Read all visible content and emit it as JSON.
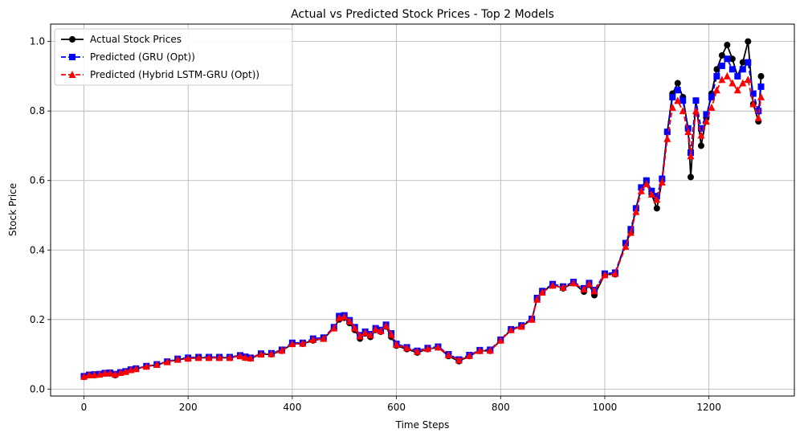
{
  "chart_data": {
    "type": "line",
    "title": "Actual vs Predicted Stock Prices - Top 2 Models",
    "xlabel": "Time Steps",
    "ylabel": "Stock Price",
    "xlim": [
      -64,
      1364
    ],
    "ylim": [
      -0.02,
      1.05
    ],
    "x_ticks": [
      0,
      200,
      400,
      600,
      800,
      1000,
      1200
    ],
    "y_ticks": [
      0.0,
      0.2,
      0.4,
      0.6,
      0.8,
      1.0
    ],
    "x_tick_labels": [
      "0",
      "200",
      "400",
      "600",
      "800",
      "1000",
      "1200"
    ],
    "y_tick_labels": [
      "0.0",
      "0.2",
      "0.4",
      "0.6",
      "0.8",
      "1.0"
    ],
    "grid": true,
    "legend_position": "upper-left",
    "series": [
      {
        "name": "Actual Stock Prices",
        "color": "#000000",
        "linestyle": "solid",
        "marker": "circle",
        "x": [
          0,
          10,
          20,
          30,
          40,
          50,
          60,
          70,
          80,
          90,
          100,
          120,
          140,
          160,
          180,
          200,
          220,
          240,
          260,
          280,
          300,
          310,
          320,
          340,
          360,
          380,
          400,
          420,
          440,
          460,
          480,
          490,
          500,
          510,
          520,
          530,
          540,
          550,
          560,
          570,
          580,
          590,
          600,
          620,
          640,
          660,
          680,
          700,
          720,
          740,
          760,
          780,
          800,
          820,
          840,
          860,
          870,
          880,
          900,
          920,
          940,
          960,
          970,
          980,
          1000,
          1020,
          1040,
          1050,
          1060,
          1070,
          1080,
          1090,
          1100,
          1110,
          1120,
          1130,
          1140,
          1150,
          1160,
          1165,
          1175,
          1185,
          1195,
          1205,
          1215,
          1225,
          1235,
          1245,
          1255,
          1265,
          1275,
          1285,
          1295,
          1300
        ],
        "values": [
          0.035,
          0.04,
          0.04,
          0.042,
          0.045,
          0.045,
          0.04,
          0.048,
          0.05,
          0.055,
          0.058,
          0.065,
          0.07,
          0.078,
          0.085,
          0.088,
          0.09,
          0.09,
          0.09,
          0.09,
          0.095,
          0.09,
          0.088,
          0.1,
          0.1,
          0.11,
          0.13,
          0.13,
          0.14,
          0.145,
          0.175,
          0.2,
          0.205,
          0.19,
          0.17,
          0.145,
          0.16,
          0.15,
          0.17,
          0.165,
          0.18,
          0.15,
          0.125,
          0.115,
          0.105,
          0.115,
          0.12,
          0.095,
          0.08,
          0.095,
          0.11,
          0.11,
          0.14,
          0.17,
          0.18,
          0.2,
          0.26,
          0.28,
          0.3,
          0.29,
          0.305,
          0.28,
          0.3,
          0.27,
          0.33,
          0.33,
          0.42,
          0.45,
          0.52,
          0.58,
          0.6,
          0.56,
          0.52,
          0.6,
          0.74,
          0.85,
          0.88,
          0.84,
          0.75,
          0.61,
          0.83,
          0.7,
          0.78,
          0.85,
          0.92,
          0.96,
          0.99,
          0.95,
          0.9,
          0.94,
          1.0,
          0.82,
          0.77,
          0.9
        ]
      },
      {
        "name": "Predicted (GRU (Opt))",
        "color": "#0000ff",
        "linestyle": "dashed",
        "marker": "square",
        "x": [
          0,
          10,
          20,
          30,
          40,
          50,
          60,
          70,
          80,
          90,
          100,
          120,
          140,
          160,
          180,
          200,
          220,
          240,
          260,
          280,
          300,
          310,
          320,
          340,
          360,
          380,
          400,
          420,
          440,
          460,
          480,
          490,
          500,
          510,
          520,
          530,
          540,
          550,
          560,
          570,
          580,
          590,
          600,
          620,
          640,
          660,
          680,
          700,
          720,
          740,
          760,
          780,
          800,
          820,
          840,
          860,
          870,
          880,
          900,
          920,
          940,
          960,
          970,
          980,
          1000,
          1020,
          1040,
          1050,
          1060,
          1070,
          1080,
          1090,
          1100,
          1110,
          1120,
          1130,
          1140,
          1150,
          1160,
          1165,
          1175,
          1185,
          1195,
          1205,
          1215,
          1225,
          1235,
          1245,
          1255,
          1265,
          1275,
          1285,
          1295,
          1300
        ],
        "values": [
          0.037,
          0.041,
          0.042,
          0.043,
          0.046,
          0.047,
          0.043,
          0.048,
          0.051,
          0.056,
          0.059,
          0.066,
          0.071,
          0.079,
          0.087,
          0.09,
          0.092,
          0.092,
          0.092,
          0.092,
          0.097,
          0.093,
          0.09,
          0.102,
          0.103,
          0.113,
          0.133,
          0.133,
          0.145,
          0.148,
          0.178,
          0.21,
          0.212,
          0.198,
          0.178,
          0.155,
          0.165,
          0.158,
          0.175,
          0.17,
          0.185,
          0.16,
          0.13,
          0.12,
          0.11,
          0.118,
          0.122,
          0.1,
          0.085,
          0.098,
          0.112,
          0.113,
          0.142,
          0.172,
          0.183,
          0.202,
          0.262,
          0.282,
          0.302,
          0.295,
          0.308,
          0.29,
          0.305,
          0.285,
          0.332,
          0.335,
          0.42,
          0.46,
          0.52,
          0.58,
          0.6,
          0.57,
          0.555,
          0.605,
          0.74,
          0.84,
          0.86,
          0.83,
          0.75,
          0.68,
          0.83,
          0.75,
          0.79,
          0.84,
          0.9,
          0.93,
          0.95,
          0.92,
          0.9,
          0.92,
          0.94,
          0.85,
          0.8,
          0.87
        ]
      },
      {
        "name": "Predicted (Hybrid LSTM-GRU (Opt))",
        "color": "#ff0000",
        "linestyle": "dashed",
        "marker": "triangle",
        "x": [
          0,
          10,
          20,
          30,
          40,
          50,
          60,
          70,
          80,
          90,
          100,
          120,
          140,
          160,
          180,
          200,
          220,
          240,
          260,
          280,
          300,
          310,
          320,
          340,
          360,
          380,
          400,
          420,
          440,
          460,
          480,
          490,
          500,
          510,
          520,
          530,
          540,
          550,
          560,
          570,
          580,
          590,
          600,
          620,
          640,
          660,
          680,
          700,
          720,
          740,
          760,
          780,
          800,
          820,
          840,
          860,
          870,
          880,
          900,
          920,
          940,
          960,
          970,
          980,
          1000,
          1020,
          1040,
          1050,
          1060,
          1070,
          1080,
          1090,
          1100,
          1110,
          1120,
          1130,
          1140,
          1150,
          1160,
          1165,
          1175,
          1185,
          1195,
          1205,
          1215,
          1225,
          1235,
          1245,
          1255,
          1265,
          1275,
          1285,
          1295,
          1300
        ],
        "values": [
          0.036,
          0.04,
          0.041,
          0.042,
          0.045,
          0.046,
          0.042,
          0.047,
          0.05,
          0.055,
          0.058,
          0.065,
          0.07,
          0.078,
          0.085,
          0.088,
          0.09,
          0.09,
          0.09,
          0.09,
          0.095,
          0.091,
          0.089,
          0.1,
          0.101,
          0.111,
          0.13,
          0.131,
          0.142,
          0.145,
          0.175,
          0.205,
          0.208,
          0.195,
          0.175,
          0.152,
          0.162,
          0.155,
          0.172,
          0.167,
          0.182,
          0.157,
          0.128,
          0.118,
          0.108,
          0.116,
          0.12,
          0.098,
          0.083,
          0.096,
          0.11,
          0.111,
          0.14,
          0.17,
          0.18,
          0.2,
          0.258,
          0.278,
          0.298,
          0.292,
          0.305,
          0.287,
          0.302,
          0.282,
          0.328,
          0.332,
          0.41,
          0.45,
          0.51,
          0.57,
          0.59,
          0.56,
          0.545,
          0.595,
          0.72,
          0.81,
          0.83,
          0.8,
          0.74,
          0.67,
          0.8,
          0.73,
          0.77,
          0.81,
          0.86,
          0.89,
          0.9,
          0.88,
          0.86,
          0.88,
          0.89,
          0.82,
          0.78,
          0.84
        ]
      }
    ]
  }
}
